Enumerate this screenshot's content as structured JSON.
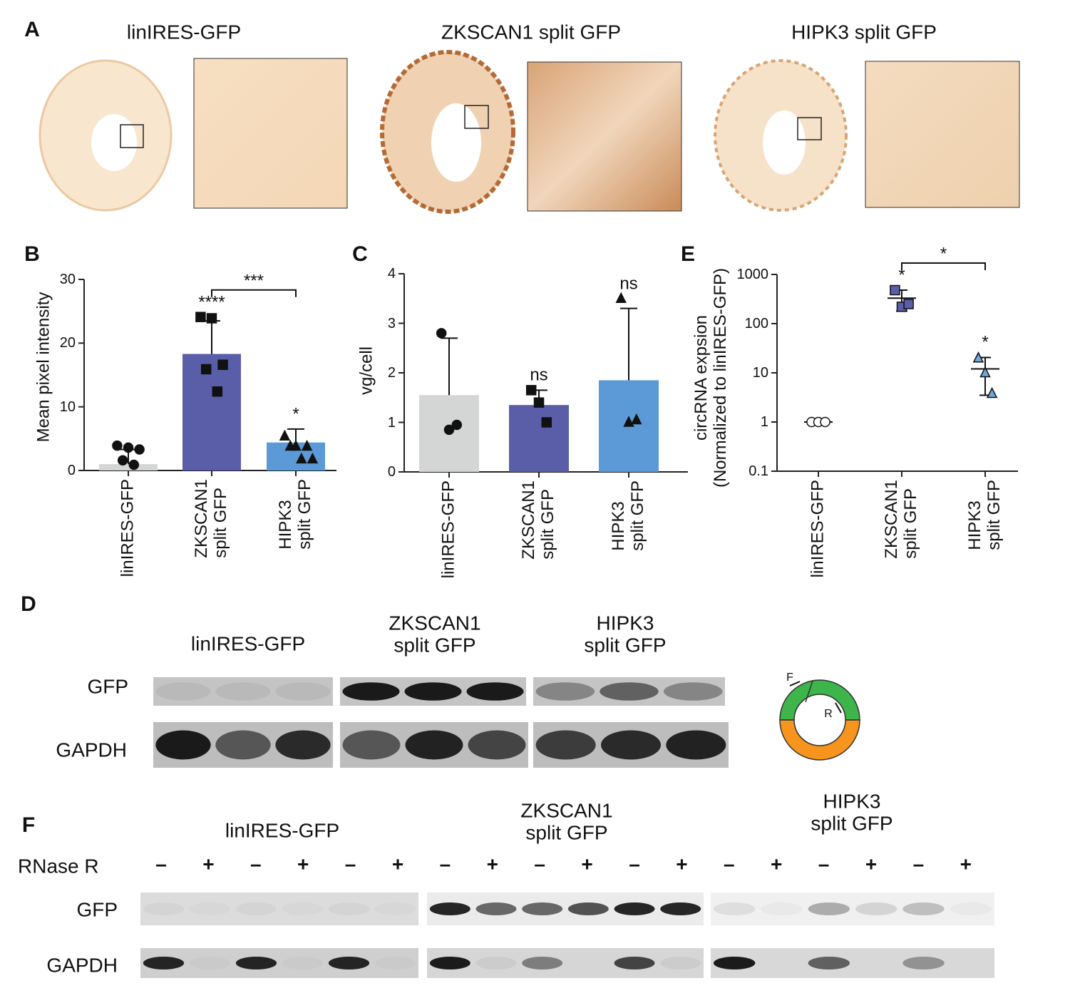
{
  "panel_a": {
    "label": "A",
    "titles": [
      "linIRES-GFP",
      "ZKSCAN1 split GFP",
      "HIPK3 split GFP"
    ]
  },
  "chart_data": [
    {
      "type": "bar",
      "panel_label": "B",
      "ylabel": "Mean pixel intensity",
      "categories": [
        "linIRES-GFP",
        "ZKSCAN1\nsplit GFP",
        "HIPK3\nsplit GFP"
      ],
      "values": [
        1.0,
        18.3,
        4.4
      ],
      "errors": [
        2.3,
        5.2,
        2.1
      ],
      "points": [
        [
          3.9,
          3.6,
          3.3,
          1.6,
          0.9
        ],
        [
          24.1,
          23.9,
          16.6,
          15.9,
          12.4
        ],
        [
          5.4,
          3.8,
          3.8,
          3.8,
          1.8,
          1.8
        ]
      ],
      "colors": [
        "#d4d6d5",
        "#5a5ea9",
        "#5b9ad6"
      ],
      "point_colors": [
        "#111111",
        "#111111",
        "#111111"
      ],
      "point_markers": [
        "circle",
        "square",
        "triangle"
      ],
      "annotations": [
        null,
        "****",
        "*"
      ],
      "bracket_label": "***",
      "ylim": [
        0,
        30
      ],
      "yticks": [
        0,
        10,
        20,
        30
      ]
    },
    {
      "type": "bar",
      "panel_label": "C",
      "ylabel": "vg/cell",
      "categories": [
        "linIRES-GFP",
        "ZKSCAN1\nsplit GFP",
        "HIPK3\nsplit GFP"
      ],
      "values": [
        1.55,
        1.35,
        1.85
      ],
      "errors": [
        1.15,
        0.3,
        1.45
      ],
      "points": [
        [
          2.8,
          0.85,
          0.95
        ],
        [
          1.65,
          1.4,
          1.0
        ],
        [
          3.5,
          1.0,
          1.05
        ]
      ],
      "colors": [
        "#d4d6d5",
        "#5a5ea9",
        "#5b9ad6"
      ],
      "point_colors": [
        "#111111",
        "#111111",
        "#111111"
      ],
      "point_markers": [
        "circle",
        "square",
        "triangle"
      ],
      "annotations": [
        null,
        "ns",
        "ns"
      ],
      "ylim": [
        0,
        4
      ],
      "yticks": [
        0,
        1,
        2,
        3,
        4
      ]
    },
    {
      "type": "scatter",
      "panel_label": "E",
      "ylabel": "circRNA expsion\n(Normalized to linIRES-GFP)",
      "categories": [
        "linIRES-GFP",
        "ZKSCAN1\nsplit GFP",
        "HIPK3\nsplit GFP"
      ],
      "values": [
        1,
        330,
        12
      ],
      "errors": [
        0,
        150,
        8.5
      ],
      "points": [
        [
          1,
          1,
          1
        ],
        [
          480,
          220,
          250
        ],
        [
          20,
          10,
          3.8
        ]
      ],
      "point_colors": [
        "#ffffff",
        "#5a5ea9",
        "#6fa8dc"
      ],
      "point_markers": [
        "circle",
        "square",
        "triangle"
      ],
      "annotations": [
        null,
        "*",
        "*"
      ],
      "bracket_label": "*",
      "yscale": "log",
      "ylim": [
        0.1,
        1000
      ],
      "yticks": [
        0.1,
        1,
        10,
        100,
        1000
      ]
    }
  ],
  "panel_d": {
    "label": "D",
    "groups": [
      "linIRES-GFP",
      "ZKSCAN1\nsplit GFP",
      "HIPK3\nsplit GFP"
    ],
    "rows": [
      "GFP",
      "GAPDH"
    ],
    "primers": [
      "F",
      "R"
    ]
  },
  "panel_f": {
    "label": "F",
    "groups": [
      "linIRES-GFP",
      "ZKSCAN1\nsplit GFP",
      "HIPK3\nsplit GFP"
    ],
    "treatment": "RNase R",
    "lanes": [
      "–",
      "+",
      "–",
      "+",
      "–",
      "+",
      "–",
      "+",
      "–",
      "+",
      "–",
      "+",
      "–",
      "+",
      "–",
      "+",
      "–",
      "+"
    ],
    "rows": [
      "GFP",
      "GAPDH"
    ]
  }
}
